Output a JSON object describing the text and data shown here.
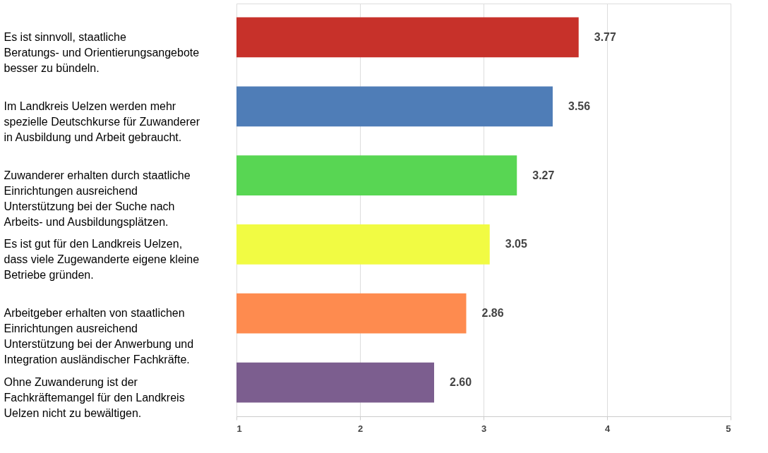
{
  "chart_data": {
    "type": "bar",
    "orientation": "horizontal",
    "categories": [
      "Es ist sinnvoll, staatliche Beratungs- und Orientierungsangebote besser zu bündeln.",
      "Im Landkreis Uelzen werden mehr spezielle Deutschkurse für Zuwanderer in Ausbildung und Arbeit gebraucht.",
      "Zuwanderer erhalten durch staatliche Einrichtungen ausreichend Unterstützung bei der Suche nach Arbeits- und Ausbildungsplätzen.",
      "Es ist gut für den Landkreis Uelzen, dass viele Zugewanderte eigene kleine Betriebe gründen.",
      "Arbeitgeber erhalten von staatlichen Einrichtungen ausreichend Unterstützung bei der Anwerbung und Integration ausländischer Fachkräfte.",
      "Ohne Zuwanderung ist der Fachkräftemangel für den Landkreis Uelzen nicht zu bewältigen."
    ],
    "values": [
      3.77,
      3.56,
      3.27,
      3.05,
      2.86,
      2.6
    ],
    "value_labels": [
      "3.77",
      "3.56",
      "3.27",
      "3.05",
      "2.86",
      "2.60"
    ],
    "colors": [
      "#c7312a",
      "#4f7db7",
      "#58d653",
      "#f1fb43",
      "#fe8b4f",
      "#7c5e8f"
    ],
    "xlim": [
      1,
      5
    ],
    "xticks": [
      1,
      2,
      3,
      4,
      5
    ],
    "grid": "x"
  }
}
